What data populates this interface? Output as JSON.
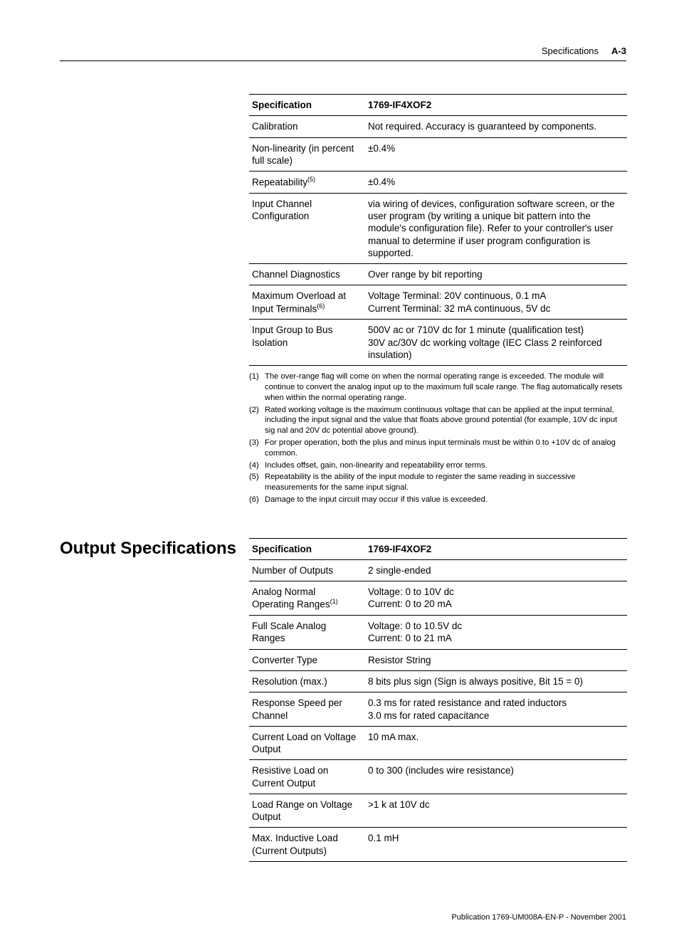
{
  "header": {
    "section": "Specifications",
    "page": "A-3"
  },
  "table1": {
    "head": [
      "Specification",
      "1769-IF4XOF2"
    ],
    "rows": [
      {
        "c1": "Calibration",
        "c2": "Not required. Accuracy is guaranteed by components."
      },
      {
        "c1": "Non-linearity (in percent full scale)",
        "c2": "±0.4%"
      },
      {
        "c1": "Repeatability",
        "c1sup": "(5)",
        "c2": "±0.4%"
      },
      {
        "c1": "Input Channel Configuration",
        "c2": "via wiring of devices, configuration software screen, or the user program (by writing a unique bit pattern into the module's configuration file). Refer to your controller's user manual to determine if user program configuration is supported."
      },
      {
        "c1": "Channel Diagnostics",
        "c2": "Over range by bit reporting"
      },
      {
        "c1": "Maximum Overload at Input Terminals",
        "c1sup": "(6)",
        "c2": "Voltage Terminal: 20V continuous, 0.1 mA\nCurrent Terminal: 32 mA continuous, 5V dc"
      },
      {
        "c1": "Input Group to Bus Isolation",
        "c2": "500V ac or 710V dc for 1 minute (qualification test)\n30V ac/30V dc working voltage (IEC Class 2 reinforced insulation)"
      }
    ]
  },
  "footnotes": [
    {
      "n": "(1)",
      "t": "The over-range flag will come on when the normal operating range is exceeded. The module will continue to convert the analog input up to the maximum full scale range. The flag automatically resets when within the normal operating range."
    },
    {
      "n": "(2)",
      "t": "Rated working voltage is the maximum continuous voltage that can be applied at the input terminal, including the input signal and the value that floats above ground potential (for example, 10V dc input sig nal and 20V dc potential above ground)."
    },
    {
      "n": "(3)",
      "t": "For proper operation, both the plus and minus input terminals must be within 0 to +10V dc of analog common."
    },
    {
      "n": "(4)",
      "t": "Includes offset, gain, non-linearity and repeatability error terms."
    },
    {
      "n": "(5)",
      "t": "Repeatability is the ability of the input module to register the same reading in successive measurements for the same input signal."
    },
    {
      "n": "(6)",
      "t": "Damage to the input circuit may occur if this value is exceeded."
    }
  ],
  "section2": {
    "heading": "Output Specifications"
  },
  "table2": {
    "head": [
      "Specification",
      "1769-IF4XOF2"
    ],
    "rows": [
      {
        "c1": "Number of Outputs",
        "c2": "2 single-ended"
      },
      {
        "c1": "Analog Normal Operating Ranges",
        "c1sup": "(1)",
        "c2": "Voltage: 0 to 10V dc\nCurrent: 0 to 20 mA"
      },
      {
        "c1": "Full Scale Analog Ranges",
        "c2": "Voltage: 0 to 10.5V dc\nCurrent: 0 to 21 mA"
      },
      {
        "c1": "Converter Type",
        "c2": "Resistor String"
      },
      {
        "c1": "Resolution (max.)",
        "c2": "8 bits plus sign (Sign is always positive, Bit 15 = 0)"
      },
      {
        "c1": "Response Speed per Channel",
        "c2": "0.3 ms for rated resistance and rated inductors\n3.0 ms for rated capacitance"
      },
      {
        "c1": "Current Load on Voltage Output",
        "c2": "10 mA max."
      },
      {
        "c1": "Resistive Load on Current Output",
        "c2": "0 to 300     (includes wire resistance)"
      },
      {
        "c1": "Load Range on Voltage Output",
        "c2": ">1 k    at 10V dc"
      },
      {
        "c1": "Max. Inductive Load (Current Outputs)",
        "c2": "0.1 mH"
      }
    ]
  },
  "footer": {
    "pub": "Publication 1769-UM008A-EN-P - November 2001"
  }
}
